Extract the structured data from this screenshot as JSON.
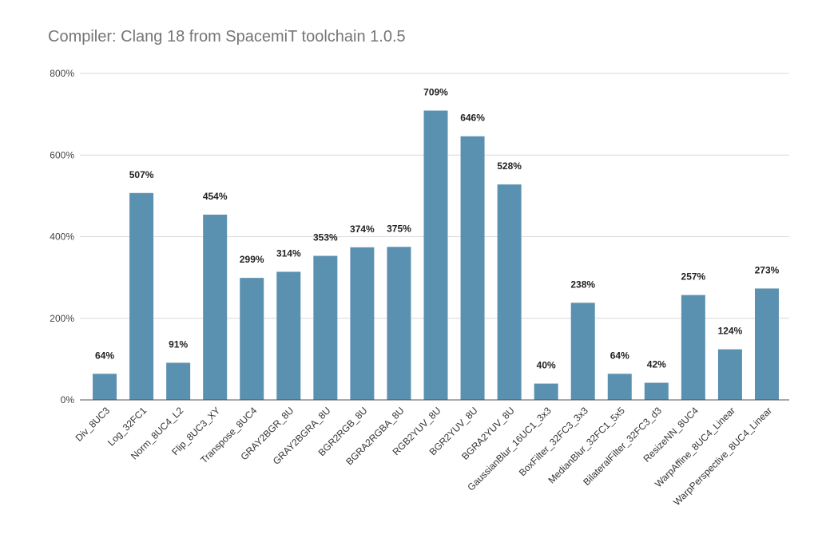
{
  "chart_data": {
    "type": "bar",
    "title": "Compiler: Clang 18 from SpacemiT toolchain 1.0.5",
    "xlabel": "",
    "ylabel": "",
    "ylim": [
      0,
      800
    ],
    "yticks": [
      "0%",
      "200%",
      "400%",
      "600%",
      "800%"
    ],
    "grid": true,
    "bar_color": "#5b91b0",
    "categories": [
      "Div_8UC3",
      "Log_32FC1",
      "Norm_8UC4_L2",
      "Flip_8UC3_XY",
      "Transpose_8UC4",
      "GRAY2BGR_8U",
      "GRAY2BGRA_8U",
      "BGR2RGB_8U",
      "BGRA2RGBA_8U",
      "RGB2YUV_8U",
      "BGR2YUV_8U",
      "BGRA2YUV_8U",
      "GaussianBlur_16UC1_3x3",
      "BoxFilter_32FC3_3x3",
      "MedianBlur_32FC1_5x5",
      "BilateralFilter_32FC3_d3",
      "ResizeNN_8UC4",
      "WarpAffine_8UC4_Linear",
      "WarpPerspective_8UC4_Linear"
    ],
    "values": [
      64,
      507,
      91,
      454,
      299,
      314,
      353,
      374,
      375,
      709,
      646,
      528,
      40,
      238,
      64,
      42,
      257,
      124,
      273
    ],
    "data_labels": [
      "64%",
      "507%",
      "91%",
      "454%",
      "299%",
      "314%",
      "353%",
      "374%",
      "375%",
      "709%",
      "646%",
      "528%",
      "40%",
      "238%",
      "64%",
      "42%",
      "257%",
      "124%",
      "273%"
    ]
  }
}
